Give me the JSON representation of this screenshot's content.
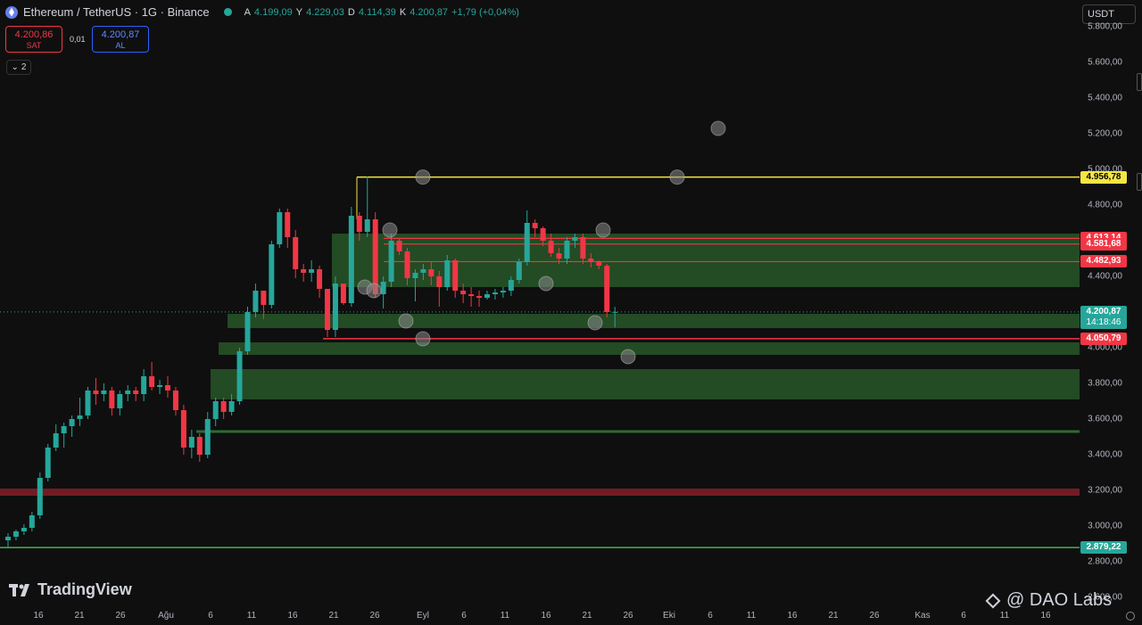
{
  "header": {
    "symbol": "Ethereum / TetherUS · 1G · Binance",
    "ohlc": [
      {
        "k": "A",
        "v": "4.199,09"
      },
      {
        "k": "Y",
        "v": "4.229,03"
      },
      {
        "k": "D",
        "v": "4.114,39"
      },
      {
        "k": "K",
        "v": "4.200,87"
      },
      {
        "k": "",
        "v": "+1,79 (+0,04%)"
      }
    ]
  },
  "trade": {
    "sell_price": "4.200,86",
    "sell_label": "SAT",
    "spread": "0,01",
    "buy_price": "4.200,87",
    "buy_label": "AL"
  },
  "indicators_count": "2",
  "currency": "USDT",
  "price_axis_ticks": [
    "5.800,00",
    "5.600,00",
    "5.400,00",
    "5.200,00",
    "5.000,00",
    "4.800,00",
    "4.600,00",
    "4.400,00",
    "4.200,00",
    "4.000,00",
    "3.800,00",
    "3.600,00",
    "3.400,00",
    "3.200,00",
    "3.000,00",
    "2.800,00",
    "2.600,00"
  ],
  "price_tags": [
    {
      "price": 4956.78,
      "label": "4.956,78",
      "bg": "#f5e642",
      "fg": "#000000"
    },
    {
      "price": 4613.14,
      "label": "4.613,14",
      "bg": "#f23645",
      "fg": "#ffffff"
    },
    {
      "price": 4581.68,
      "label": "4.581,68",
      "bg": "#f23645",
      "fg": "#ffffff"
    },
    {
      "price": 4482.93,
      "label": "4.482,93",
      "bg": "#f23645",
      "fg": "#ffffff"
    },
    {
      "price": 4050.79,
      "label": "4.050,79",
      "bg": "#f23645",
      "fg": "#ffffff"
    },
    {
      "price": 2879.22,
      "label": "2.879,22",
      "bg": "#26a69a",
      "fg": "#ffffff"
    }
  ],
  "last_price": {
    "price": 4200.87,
    "label": "4.200,87",
    "countdown": "14:18:46"
  },
  "time_axis_labels": [
    "16",
    "21",
    "26",
    "Ağu",
    "6",
    "11",
    "16",
    "21",
    "26",
    "Eyl",
    "6",
    "11",
    "16",
    "21",
    "26",
    "Eki",
    "6",
    "11",
    "16",
    "21",
    "26",
    "Kas",
    "6",
    "11",
    "16"
  ],
  "brand": {
    "tradingview": "TradingView",
    "watermark": "@ DAO Labs"
  },
  "colors": {
    "up": "#26a69a",
    "down": "#f23645",
    "zone": "#2e6b30",
    "yellow_line": "#f5e642",
    "green_line": "#4caf50"
  },
  "chart_data": {
    "type": "candlestick",
    "symbol": "Ethereum / TetherUS",
    "interval": "1G",
    "y_range": [
      2550,
      5950
    ],
    "candles": [
      [
        2920,
        2960,
        2880,
        2940
      ],
      [
        2940,
        2980,
        2920,
        2970
      ],
      [
        2970,
        3010,
        2950,
        2990
      ],
      [
        2990,
        3080,
        2970,
        3060
      ],
      [
        3060,
        3300,
        3040,
        3270
      ],
      [
        3270,
        3460,
        3250,
        3440
      ],
      [
        3440,
        3570,
        3420,
        3520
      ],
      [
        3520,
        3580,
        3440,
        3560
      ],
      [
        3560,
        3620,
        3500,
        3600
      ],
      [
        3600,
        3720,
        3560,
        3620
      ],
      [
        3620,
        3780,
        3600,
        3760
      ],
      [
        3760,
        3830,
        3680,
        3740
      ],
      [
        3740,
        3800,
        3700,
        3760
      ],
      [
        3760,
        3780,
        3620,
        3660
      ],
      [
        3660,
        3760,
        3620,
        3740
      ],
      [
        3740,
        3790,
        3700,
        3760
      ],
      [
        3760,
        3780,
        3700,
        3740
      ],
      [
        3740,
        3880,
        3700,
        3840
      ],
      [
        3840,
        3920,
        3760,
        3780
      ],
      [
        3780,
        3820,
        3740,
        3790
      ],
      [
        3790,
        3840,
        3720,
        3760
      ],
      [
        3760,
        3780,
        3620,
        3650
      ],
      [
        3650,
        3680,
        3400,
        3440
      ],
      [
        3440,
        3540,
        3380,
        3500
      ],
      [
        3500,
        3520,
        3360,
        3400
      ],
      [
        3400,
        3640,
        3380,
        3600
      ],
      [
        3600,
        3720,
        3560,
        3700
      ],
      [
        3700,
        3720,
        3600,
        3640
      ],
      [
        3640,
        3740,
        3620,
        3700
      ],
      [
        3700,
        4000,
        3680,
        3980
      ],
      [
        3980,
        4230,
        3960,
        4200
      ],
      [
        4200,
        4360,
        4170,
        4320
      ],
      [
        4320,
        4320,
        4160,
        4240
      ],
      [
        4240,
        4600,
        4220,
        4580
      ],
      [
        4580,
        4780,
        4560,
        4760
      ],
      [
        4760,
        4780,
        4560,
        4620
      ],
      [
        4620,
        4660,
        4390,
        4440
      ],
      [
        4440,
        4470,
        4370,
        4420
      ],
      [
        4420,
        4490,
        4370,
        4440
      ],
      [
        4440,
        4460,
        4280,
        4330
      ],
      [
        4330,
        4330,
        4060,
        4100
      ],
      [
        4100,
        4400,
        4060,
        4360
      ],
      [
        4360,
        4360,
        4240,
        4250
      ],
      [
        4250,
        4790,
        4230,
        4740
      ],
      [
        4740,
        4760,
        4600,
        4650
      ],
      [
        4650,
        4960,
        4620,
        4720
      ],
      [
        4720,
        4760,
        4280,
        4300
      ],
      [
        4300,
        4400,
        4220,
        4370
      ],
      [
        4370,
        4640,
        4340,
        4600
      ],
      [
        4600,
        4610,
        4520,
        4540
      ],
      [
        4540,
        4560,
        4350,
        4390
      ],
      [
        4390,
        4440,
        4260,
        4420
      ],
      [
        4420,
        4470,
        4380,
        4440
      ],
      [
        4440,
        4480,
        4350,
        4400
      ],
      [
        4400,
        4430,
        4230,
        4340
      ],
      [
        4340,
        4520,
        4320,
        4490
      ],
      [
        4490,
        4500,
        4280,
        4320
      ],
      [
        4320,
        4360,
        4250,
        4300
      ],
      [
        4300,
        4340,
        4230,
        4290
      ],
      [
        4290,
        4320,
        4230,
        4280
      ],
      [
        4280,
        4320,
        4270,
        4300
      ],
      [
        4300,
        4330,
        4270,
        4310
      ],
      [
        4310,
        4340,
        4280,
        4320
      ],
      [
        4320,
        4400,
        4290,
        4380
      ],
      [
        4380,
        4500,
        4360,
        4480
      ],
      [
        4480,
        4770,
        4460,
        4700
      ],
      [
        4700,
        4720,
        4620,
        4670
      ],
      [
        4670,
        4680,
        4570,
        4600
      ],
      [
        4600,
        4640,
        4510,
        4530
      ],
      [
        4530,
        4560,
        4470,
        4500
      ],
      [
        4500,
        4620,
        4470,
        4600
      ],
      [
        4600,
        4640,
        4560,
        4620
      ],
      [
        4620,
        4640,
        4470,
        4500
      ],
      [
        4500,
        4530,
        4450,
        4480
      ],
      [
        4480,
        4490,
        4440,
        4460
      ],
      [
        4460,
        4470,
        4170,
        4200
      ],
      [
        4199.09,
        4229.03,
        4114.39,
        4200.87
      ]
    ],
    "horizontal_levels": [
      4956.78,
      4613.14,
      4581.68,
      4482.93,
      4050.79,
      3190,
      2879.22,
      3530
    ],
    "zones": [
      [
        4340,
        4640
      ],
      [
        4110,
        4190
      ],
      [
        3960,
        4030
      ],
      [
        3710,
        3880
      ]
    ]
  }
}
